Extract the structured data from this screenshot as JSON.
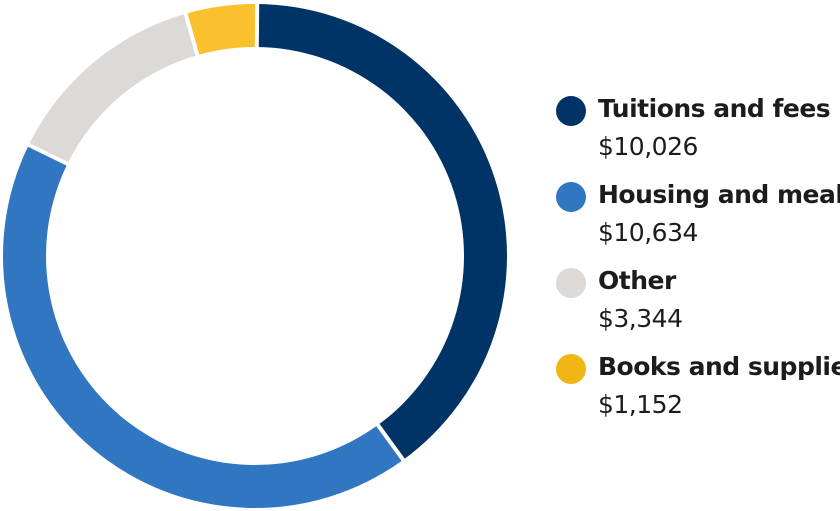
{
  "chart_data": {
    "type": "pie",
    "variant": "donut",
    "title": "",
    "legend_position": "right",
    "slices": [
      {
        "label": "Tuitions and fees",
        "value": 10026,
        "display_value": "$10,026",
        "color": "#003366"
      },
      {
        "label": "Housing and meals",
        "value": 10634,
        "display_value": "$10,634",
        "color": "#3176c1"
      },
      {
        "label": "Other",
        "value": 3344,
        "display_value": "$3,344",
        "color": "#dcd9d6"
      },
      {
        "label": "Books and supplies",
        "value": 1152,
        "display_value": "$1,152",
        "color": "#fbc02d"
      }
    ],
    "legend_dot_colors": [
      "#003366",
      "#3176c1",
      "#dcd9d6",
      "#f2b516"
    ]
  }
}
